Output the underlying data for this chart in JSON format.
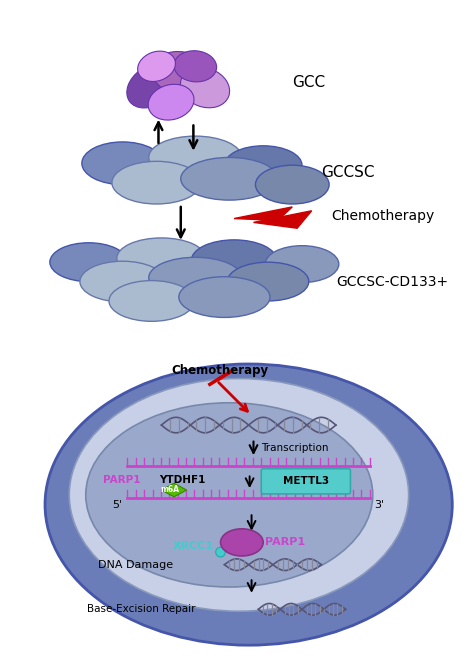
{
  "bg_color": "#ffffff",
  "gcc_label": "GCC",
  "gccsc_label": "GCCSC",
  "gccsc_cd133_label": "GCCSC-CD133+",
  "chemotherapy_label": "Chemotherapy",
  "transcription_label": "Transcription",
  "mettl3_label": "METTL3",
  "ytdhf1_label": "YTDHF1",
  "parp1_label": "PARP1",
  "parp1_label2": "PARP1",
  "m6a_label": "m6A",
  "xrcc1_label": "XRCC1",
  "dna_damage_label": "DNA Damage",
  "base_excision_label": "Base-Excision Repair",
  "outer_cell_color": "#6b7db8",
  "inner_cell_color": "#c8d0e8",
  "nucleus_color": "#9aa8cc",
  "mrna_color": "#cc44cc",
  "dna_strand_color": "#555577",
  "dna_bar_color": "#888899",
  "mettl3_box_color": "#55cccc",
  "m6a_color": "#55bb00",
  "parp1_circle_color": "#aa44aa",
  "xrcc1_dot_color": "#44cccc",
  "red_arrow_color": "#cc0000",
  "gcc_cell_colors": [
    "#7744aa",
    "#bb77cc",
    "#cc99dd",
    "#9955bb",
    "#dd99ee"
  ],
  "gccsc_cell_colors_dark": "#5566aa",
  "gccsc_cell_colors_light": "#aabbd4",
  "cd133_cell_colors_dark": "#5566aa",
  "cd133_cell_colors_light": "#aabbd4"
}
